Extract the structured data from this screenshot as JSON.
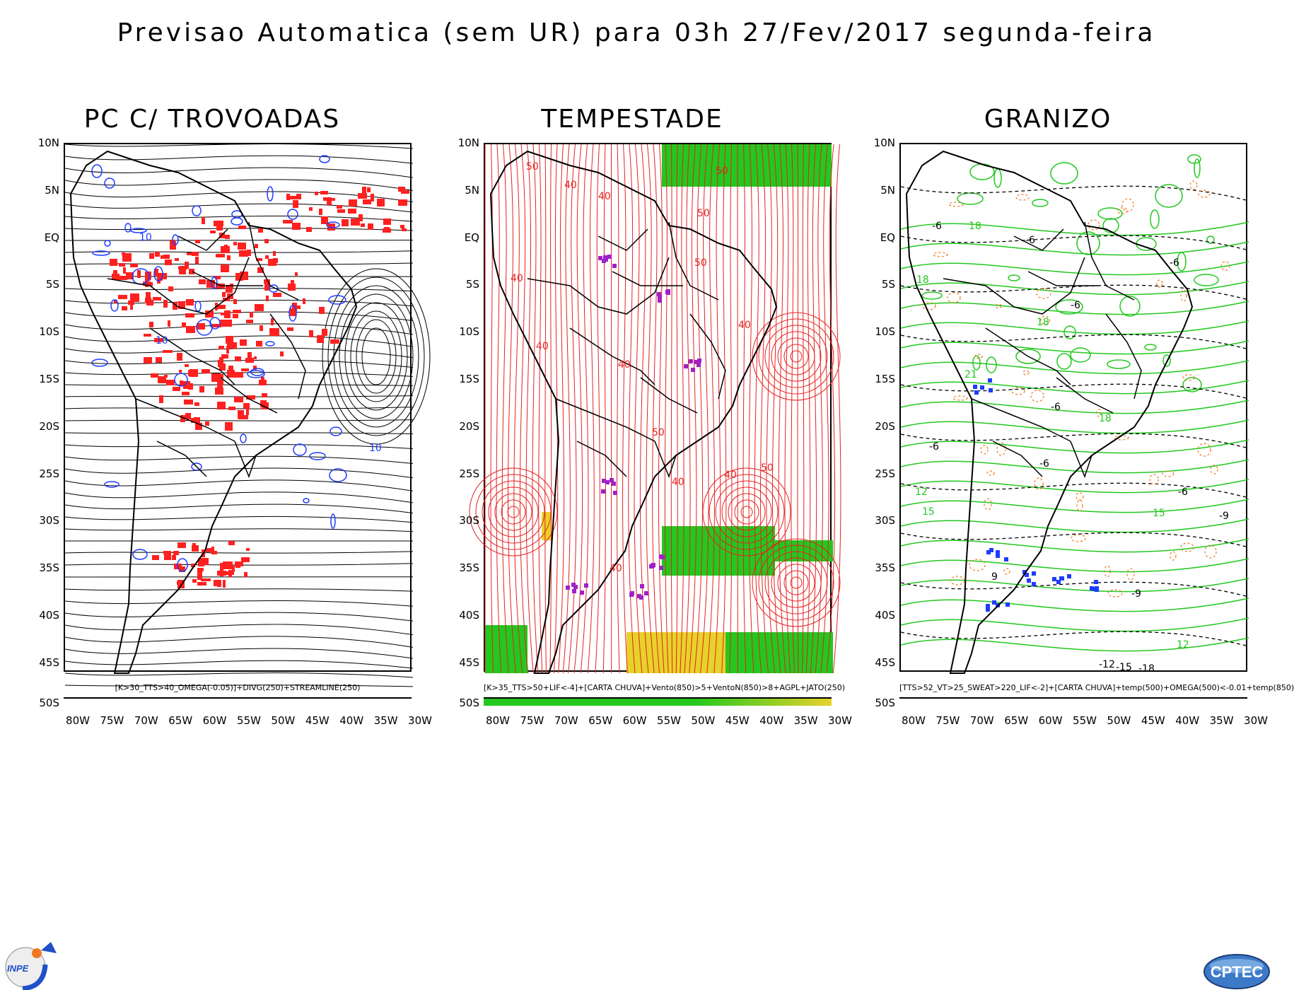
{
  "title": "Previsao Automatica (sem UR) para 03h 27/Fev/2017 segunda-feira",
  "lat_labels": [
    "10N",
    "5N",
    "EQ",
    "5S",
    "10S",
    "15S",
    "20S",
    "25S",
    "30S",
    "35S",
    "40S",
    "45S",
    "50S"
  ],
  "lon_labels": [
    "80W",
    "75W",
    "70W",
    "65W",
    "60W",
    "55W",
    "50W",
    "45W",
    "40W",
    "35W",
    "30W"
  ],
  "panels": [
    {
      "title": "PC C/ TROVOADAS",
      "caption": "[K>30_TTS>40_OMEGA(-0.05)]+DIVG(250)+STREAMLINE(250)",
      "contour_labels": [
        "10",
        "10",
        "10"
      ],
      "colors": {
        "shade": "#ff2020",
        "contour": "#1e3cff",
        "streamline": "#000000"
      }
    },
    {
      "title": "TEMPESTADE",
      "caption": "[K>35_TTS>50+LIF<-4]+[CARTA CHUVA]+Vento(850)>5+VentoN(850)>8+AGPL+JATO(250)",
      "contour_labels": [
        "50",
        "40",
        "40",
        "50",
        "50",
        "40",
        "50",
        "40",
        "40",
        "40",
        "50",
        "40",
        "40",
        "50",
        "40"
      ],
      "colors": {
        "streamline": "#e82020",
        "green": "#22c81e",
        "yellow": "#e6d22a",
        "purple": "#a020c8"
      }
    },
    {
      "title": "GRANIZO",
      "caption": "[TTS>52_VT>25_SWEAT>220_LIF<-2]+[CARTA CHUVA]+temp(500)+OMEGA(500)<-0.01+temp(850)",
      "contour_labels": [
        "-6",
        "-6",
        "-6",
        "-6",
        "18",
        "18",
        "18",
        "21",
        "-6",
        "-6",
        "18",
        "15",
        "12",
        "15",
        "-9",
        "-9",
        "12",
        "-12",
        "-15",
        "-18",
        "-6",
        "-6",
        "9"
      ],
      "colors": {
        "green": "#22c81e",
        "orange": "#f07820",
        "blue": "#1e3cff",
        "black": "#000000"
      }
    }
  ],
  "logos": {
    "left": "INPE",
    "right": "CPTEC"
  }
}
